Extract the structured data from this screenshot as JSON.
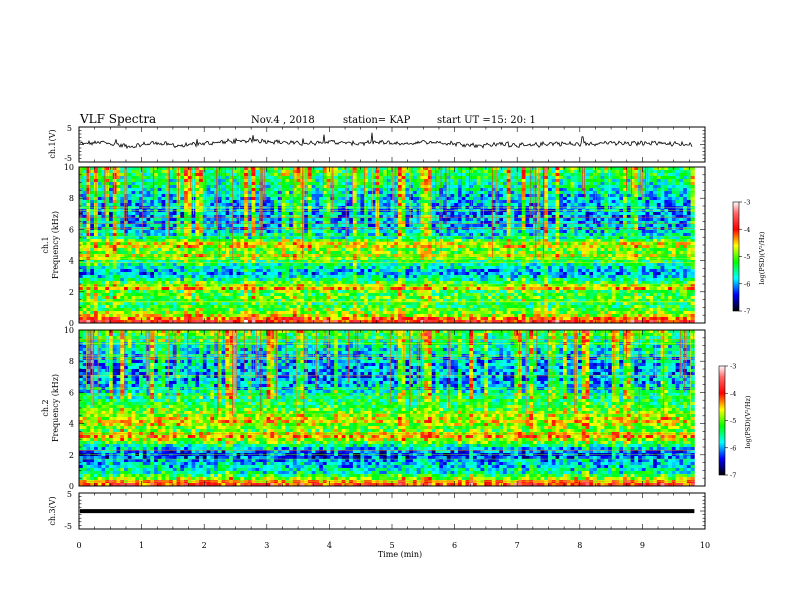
{
  "header": {
    "title": "VLF Spectra",
    "date": "Nov.4 , 2018",
    "station": "station= KAP",
    "start_label": "start UT =",
    "start_time": "15: 20: 1"
  },
  "colorbar_label": "log(PSD)(V²/Hz)",
  "colorbar_ticks": [
    "-3",
    "-4",
    "-5",
    "-6",
    "-7"
  ],
  "chart_data": [
    {
      "type": "line",
      "name": "ch1-waveform",
      "ylabel": "ch.1(V)",
      "ylim": [
        -5,
        5
      ],
      "yticks": [
        "5",
        "-5"
      ],
      "xlim": [
        0,
        10
      ],
      "x_end": 9.83,
      "trend": [
        [
          0.0,
          0.2
        ],
        [
          0.4,
          0.6
        ],
        [
          0.8,
          -0.6
        ],
        [
          1.2,
          0.5
        ],
        [
          1.6,
          -0.4
        ],
        [
          2.0,
          0.3
        ],
        [
          2.4,
          0.9
        ],
        [
          2.8,
          1.2
        ],
        [
          3.2,
          0.7
        ],
        [
          3.6,
          0.3
        ],
        [
          4.0,
          0.8
        ],
        [
          4.4,
          0.3
        ],
        [
          4.8,
          0.6
        ],
        [
          5.2,
          0.2
        ],
        [
          5.6,
          0.8
        ],
        [
          6.0,
          0.3
        ],
        [
          6.4,
          -0.3
        ],
        [
          6.8,
          0.2
        ],
        [
          7.2,
          -0.4
        ],
        [
          7.6,
          0.4
        ],
        [
          8.0,
          0.0
        ],
        [
          8.4,
          0.5
        ],
        [
          8.8,
          0.2
        ],
        [
          9.2,
          0.6
        ],
        [
          9.6,
          0.1
        ],
        [
          9.83,
          0.0
        ]
      ]
    },
    {
      "type": "heatmap",
      "name": "ch1-spectrogram",
      "ylabel_channel": "ch.1",
      "ylabel": "Frequency (kHz)",
      "ylim": [
        0,
        10
      ],
      "yticks": [
        "10",
        "8",
        "6",
        "4",
        "2",
        "0"
      ],
      "xlim": [
        0,
        10
      ],
      "x_end": 9.83,
      "color_range": [
        -7,
        -3
      ],
      "bands_khz_log_psd": [
        [
          10.0,
          -5.2
        ],
        [
          9.0,
          -5.6
        ],
        [
          8.0,
          -5.9
        ],
        [
          7.0,
          -6.1
        ],
        [
          6.0,
          -5.9
        ],
        [
          5.5,
          -5.7
        ],
        [
          5.2,
          -4.9
        ],
        [
          5.0,
          -4.6
        ],
        [
          4.6,
          -5.2
        ],
        [
          4.3,
          -4.8
        ],
        [
          4.0,
          -5.3
        ],
        [
          3.6,
          -5.7
        ],
        [
          3.2,
          -6.1
        ],
        [
          2.8,
          -5.6
        ],
        [
          2.4,
          -4.9
        ],
        [
          2.2,
          -4.5
        ],
        [
          2.0,
          -5.3
        ],
        [
          1.6,
          -5.1
        ],
        [
          1.2,
          -5.4
        ],
        [
          0.8,
          -5.1
        ],
        [
          0.5,
          -4.8
        ],
        [
          0.3,
          -4.3
        ],
        [
          0.0,
          -3.8
        ]
      ]
    },
    {
      "type": "heatmap",
      "name": "ch2-spectrogram",
      "ylabel_channel": "ch.2",
      "ylabel": "Frequency (kHz)",
      "ylim": [
        0,
        10
      ],
      "yticks": [
        "10",
        "8",
        "6",
        "4",
        "2",
        "0"
      ],
      "xlim": [
        0,
        10
      ],
      "x_end": 9.83,
      "color_range": [
        -7,
        -3
      ],
      "bands_khz_log_psd": [
        [
          10.0,
          -5.1
        ],
        [
          9.0,
          -5.7
        ],
        [
          8.0,
          -6.0
        ],
        [
          7.0,
          -6.1
        ],
        [
          6.2,
          -5.8
        ],
        [
          5.8,
          -5.5
        ],
        [
          5.2,
          -5.3
        ],
        [
          4.6,
          -5.0
        ],
        [
          4.2,
          -4.6
        ],
        [
          4.0,
          -4.8
        ],
        [
          3.6,
          -5.2
        ],
        [
          3.2,
          -4.4
        ],
        [
          2.9,
          -5.0
        ],
        [
          2.6,
          -5.6
        ],
        [
          2.2,
          -6.2
        ],
        [
          1.9,
          -6.4
        ],
        [
          1.6,
          -6.0
        ],
        [
          1.2,
          -5.9
        ],
        [
          0.8,
          -5.6
        ],
        [
          0.5,
          -5.0
        ],
        [
          0.3,
          -4.4
        ],
        [
          0.0,
          -3.9
        ]
      ]
    },
    {
      "type": "line",
      "name": "ch3-waveform",
      "ylabel": "ch.3(V)",
      "ylim": [
        -5,
        5
      ],
      "yticks": [
        "5",
        "-5"
      ],
      "xlim": [
        0,
        10
      ],
      "x_end": 9.83,
      "constant_value": -1.7,
      "xlabel": "Time (min)",
      "xticks": [
        "0",
        "1",
        "2",
        "3",
        "4",
        "5",
        "6",
        "7",
        "8",
        "9",
        "10"
      ]
    }
  ]
}
